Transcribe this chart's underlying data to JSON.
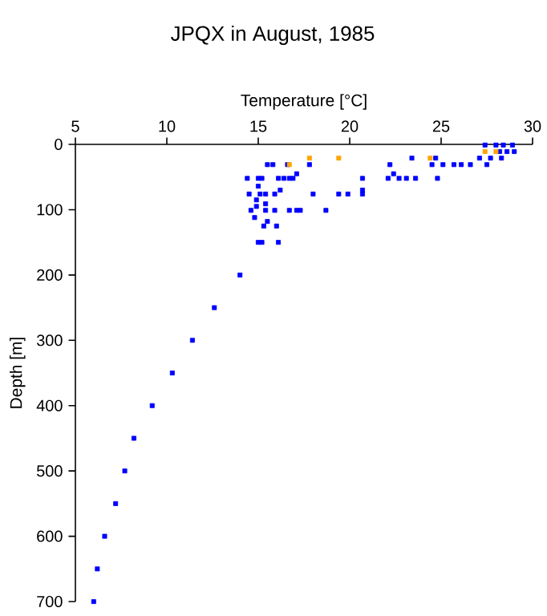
{
  "chart_data": {
    "type": "scatter",
    "title": "JPQX in August, 1985",
    "xlabel": "Temperature [°C]",
    "ylabel": "Depth [m]",
    "xlim": [
      5,
      30
    ],
    "ylim": [
      700,
      0
    ],
    "xticks": [
      5,
      10,
      15,
      20,
      25,
      30
    ],
    "yticks": [
      0,
      100,
      200,
      300,
      400,
      500,
      600,
      700
    ],
    "marker": "square",
    "series": [
      {
        "color": "#0000ff",
        "x": [
          27.4,
          28.0,
          28.4,
          28.9,
          28.2,
          28.6,
          29.0,
          23.4,
          24.7,
          27.1,
          27.7,
          28.3,
          15.5,
          15.8,
          16.6,
          17.8,
          22.2,
          24.5,
          25.1,
          25.7,
          26.1,
          26.6,
          27.5,
          17.1,
          22.4,
          14.4,
          15.0,
          15.2,
          16.1,
          16.4,
          16.7,
          16.9,
          20.7,
          22.1,
          22.7,
          23.1,
          23.6,
          24.8,
          15.0,
          16.2,
          20.7,
          14.5,
          15.1,
          15.4,
          15.9,
          18.0,
          19.4,
          19.9,
          20.7,
          14.9,
          15.4,
          14.9,
          14.6,
          15.4,
          15.9,
          16.7,
          17.1,
          17.3,
          18.7,
          14.8,
          15.5,
          15.3,
          16.0,
          15.0,
          15.2,
          16.1,
          14.0,
          12.6,
          11.4,
          10.3,
          9.2,
          8.2,
          7.7,
          7.2,
          6.6,
          6.2,
          6.0
        ],
        "values": [
          1,
          1,
          1,
          1,
          11,
          11,
          11,
          21,
          21,
          21,
          21,
          21,
          31,
          31,
          31,
          31,
          31,
          31,
          31,
          31,
          31,
          31,
          31,
          45,
          45,
          52,
          52,
          52,
          52,
          52,
          52,
          52,
          52,
          52,
          52,
          52,
          52,
          52,
          64,
          70,
          70,
          76,
          76,
          76,
          76,
          76,
          76,
          76,
          76,
          85,
          91,
          95,
          101,
          101,
          101,
          101,
          101,
          101,
          101,
          112,
          118,
          125,
          125,
          150,
          150,
          150,
          200,
          250,
          300,
          350,
          400,
          450,
          500,
          550,
          600,
          650,
          700
        ]
      },
      {
        "color": "#ffa500",
        "x": [
          27.4,
          28.0,
          17.8,
          19.4,
          24.4,
          16.7
        ],
        "values": [
          11,
          11,
          21,
          21,
          21,
          31
        ]
      }
    ]
  }
}
